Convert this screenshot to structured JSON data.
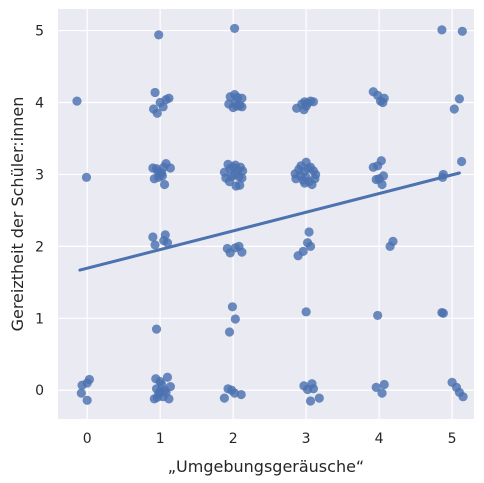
{
  "chart_data": {
    "type": "scatter",
    "title": "",
    "xlabel": "„Umgebungsgeräusche“",
    "ylabel": "Gereiztheit der Schüler:innen",
    "xlim": [
      -0.4,
      5.3
    ],
    "ylim": [
      -0.4,
      5.3
    ],
    "xticks": [
      "0",
      "1",
      "2",
      "3",
      "4",
      "5"
    ],
    "yticks": [
      "0",
      "1",
      "2",
      "3",
      "4",
      "5"
    ],
    "grid": true,
    "colors": {
      "background": "#EAEAF2",
      "grid": "#FFFFFF",
      "points": "#4C72B0",
      "line": "#4C72B0"
    },
    "points": [
      {
        "x": -0.14,
        "y": 4.02
      },
      {
        "x": -0.01,
        "y": 2.96
      },
      {
        "x": -0.07,
        "y": 0.07
      },
      {
        "x": 0.03,
        "y": 0.15
      },
      {
        "x": 0.0,
        "y": 0.1
      },
      {
        "x": -0.08,
        "y": -0.04
      },
      {
        "x": 0.0,
        "y": -0.14
      },
      {
        "x": 0.98,
        "y": 4.94
      },
      {
        "x": 0.93,
        "y": 4.14
      },
      {
        "x": 1.0,
        "y": 4.0
      },
      {
        "x": 1.08,
        "y": 4.04
      },
      {
        "x": 1.12,
        "y": 4.06
      },
      {
        "x": 0.91,
        "y": 3.91
      },
      {
        "x": 0.96,
        "y": 3.85
      },
      {
        "x": 1.04,
        "y": 3.94
      },
      {
        "x": 0.9,
        "y": 3.09
      },
      {
        "x": 0.95,
        "y": 3.08
      },
      {
        "x": 1.02,
        "y": 3.02
      },
      {
        "x": 1.05,
        "y": 3.1
      },
      {
        "x": 1.08,
        "y": 3.15
      },
      {
        "x": 1.14,
        "y": 3.09
      },
      {
        "x": 0.92,
        "y": 2.94
      },
      {
        "x": 0.98,
        "y": 2.96
      },
      {
        "x": 1.0,
        "y": 3.0
      },
      {
        "x": 1.06,
        "y": 2.86
      },
      {
        "x": 0.97,
        "y": 3.04
      },
      {
        "x": 1.03,
        "y": 2.98
      },
      {
        "x": 0.9,
        "y": 2.13
      },
      {
        "x": 0.93,
        "y": 2.02
      },
      {
        "x": 1.07,
        "y": 2.16
      },
      {
        "x": 1.05,
        "y": 2.08
      },
      {
        "x": 1.1,
        "y": 2.05
      },
      {
        "x": 0.95,
        "y": 0.85
      },
      {
        "x": 0.94,
        "y": 0.16
      },
      {
        "x": 1.0,
        "y": 0.12
      },
      {
        "x": 1.1,
        "y": 0.18
      },
      {
        "x": 1.14,
        "y": 0.05
      },
      {
        "x": 0.95,
        "y": 0.02
      },
      {
        "x": 1.02,
        "y": 0.08
      },
      {
        "x": 1.06,
        "y": 0.0
      },
      {
        "x": 0.92,
        "y": -0.12
      },
      {
        "x": 0.98,
        "y": -0.05
      },
      {
        "x": 1.04,
        "y": -0.09
      },
      {
        "x": 1.12,
        "y": -0.12
      },
      {
        "x": 1.0,
        "y": -0.02
      },
      {
        "x": 1.08,
        "y": -0.03
      },
      {
        "x": 0.96,
        "y": -0.1
      },
      {
        "x": 2.02,
        "y": 5.03
      },
      {
        "x": 1.96,
        "y": 4.08
      },
      {
        "x": 2.02,
        "y": 4.11
      },
      {
        "x": 2.06,
        "y": 4.07
      },
      {
        "x": 2.12,
        "y": 4.06
      },
      {
        "x": 1.94,
        "y": 3.98
      },
      {
        "x": 2.0,
        "y": 3.93
      },
      {
        "x": 2.05,
        "y": 3.95
      },
      {
        "x": 2.09,
        "y": 3.96
      },
      {
        "x": 2.12,
        "y": 3.94
      },
      {
        "x": 2.03,
        "y": 4.0
      },
      {
        "x": 1.88,
        "y": 3.03
      },
      {
        "x": 1.93,
        "y": 3.14
      },
      {
        "x": 1.96,
        "y": 3.08
      },
      {
        "x": 2.0,
        "y": 3.1
      },
      {
        "x": 2.03,
        "y": 3.13
      },
      {
        "x": 2.06,
        "y": 3.06
      },
      {
        "x": 2.1,
        "y": 3.1
      },
      {
        "x": 2.13,
        "y": 3.05
      },
      {
        "x": 1.9,
        "y": 2.95
      },
      {
        "x": 1.98,
        "y": 2.97
      },
      {
        "x": 2.02,
        "y": 3.0
      },
      {
        "x": 2.08,
        "y": 2.97
      },
      {
        "x": 2.12,
        "y": 2.95
      },
      {
        "x": 2.04,
        "y": 2.84
      },
      {
        "x": 2.09,
        "y": 2.85
      },
      {
        "x": 1.95,
        "y": 2.9
      },
      {
        "x": 1.92,
        "y": 1.97
      },
      {
        "x": 1.96,
        "y": 1.91
      },
      {
        "x": 2.03,
        "y": 1.98
      },
      {
        "x": 2.08,
        "y": 2.0
      },
      {
        "x": 2.12,
        "y": 1.92
      },
      {
        "x": 1.99,
        "y": 1.16
      },
      {
        "x": 2.03,
        "y": 0.99
      },
      {
        "x": 1.95,
        "y": 0.81
      },
      {
        "x": 1.93,
        "y": 0.02
      },
      {
        "x": 1.98,
        "y": 0.0
      },
      {
        "x": 2.02,
        "y": -0.04
      },
      {
        "x": 2.11,
        "y": -0.06
      },
      {
        "x": 1.88,
        "y": -0.11
      },
      {
        "x": 2.87,
        "y": 3.92
      },
      {
        "x": 2.94,
        "y": 3.98
      },
      {
        "x": 2.98,
        "y": 4.01
      },
      {
        "x": 3.02,
        "y": 3.99
      },
      {
        "x": 3.06,
        "y": 4.02
      },
      {
        "x": 3.1,
        "y": 4.01
      },
      {
        "x": 2.97,
        "y": 3.9
      },
      {
        "x": 3.0,
        "y": 3.95
      },
      {
        "x": 2.85,
        "y": 3.01
      },
      {
        "x": 2.9,
        "y": 3.07
      },
      {
        "x": 2.93,
        "y": 3.12
      },
      {
        "x": 2.97,
        "y": 3.04
      },
      {
        "x": 3.0,
        "y": 3.17
      },
      {
        "x": 3.03,
        "y": 3.08
      },
      {
        "x": 3.06,
        "y": 3.1
      },
      {
        "x": 3.1,
        "y": 3.05
      },
      {
        "x": 3.13,
        "y": 3.0
      },
      {
        "x": 2.86,
        "y": 2.94
      },
      {
        "x": 2.92,
        "y": 2.98
      },
      {
        "x": 2.96,
        "y": 2.92
      },
      {
        "x": 3.0,
        "y": 2.96
      },
      {
        "x": 3.04,
        "y": 2.9
      },
      {
        "x": 3.08,
        "y": 2.86
      },
      {
        "x": 3.12,
        "y": 2.94
      },
      {
        "x": 2.98,
        "y": 2.88
      },
      {
        "x": 3.04,
        "y": 2.2
      },
      {
        "x": 3.02,
        "y": 2.05
      },
      {
        "x": 3.06,
        "y": 2.0
      },
      {
        "x": 2.96,
        "y": 1.93
      },
      {
        "x": 2.89,
        "y": 1.87
      },
      {
        "x": 3.0,
        "y": 1.09
      },
      {
        "x": 2.97,
        "y": 0.06
      },
      {
        "x": 3.02,
        "y": 0.01
      },
      {
        "x": 3.08,
        "y": 0.09
      },
      {
        "x": 3.1,
        "y": 0.02
      },
      {
        "x": 3.18,
        "y": -0.11
      },
      {
        "x": 3.06,
        "y": -0.15
      },
      {
        "x": 3.92,
        "y": 4.15
      },
      {
        "x": 3.98,
        "y": 4.1
      },
      {
        "x": 4.02,
        "y": 4.02
      },
      {
        "x": 4.05,
        "y": 4.0
      },
      {
        "x": 4.07,
        "y": 4.06
      },
      {
        "x": 3.92,
        "y": 3.1
      },
      {
        "x": 3.98,
        "y": 3.12
      },
      {
        "x": 4.03,
        "y": 3.19
      },
      {
        "x": 3.96,
        "y": 2.93
      },
      {
        "x": 4.0,
        "y": 2.94
      },
      {
        "x": 4.06,
        "y": 2.98
      },
      {
        "x": 4.04,
        "y": 2.86
      },
      {
        "x": 4.19,
        "y": 2.07
      },
      {
        "x": 4.15,
        "y": 2.0
      },
      {
        "x": 3.98,
        "y": 1.04
      },
      {
        "x": 3.96,
        "y": 0.04
      },
      {
        "x": 4.07,
        "y": 0.08
      },
      {
        "x": 4.04,
        "y": -0.04
      },
      {
        "x": 4.86,
        "y": 5.01
      },
      {
        "x": 5.14,
        "y": 4.99
      },
      {
        "x": 5.1,
        "y": 4.05
      },
      {
        "x": 5.03,
        "y": 3.91
      },
      {
        "x": 5.13,
        "y": 3.18
      },
      {
        "x": 4.88,
        "y": 3.0
      },
      {
        "x": 4.87,
        "y": 2.96
      },
      {
        "x": 4.86,
        "y": 1.08
      },
      {
        "x": 4.88,
        "y": 1.07
      },
      {
        "x": 5.0,
        "y": 0.11
      },
      {
        "x": 5.06,
        "y": 0.04
      },
      {
        "x": 5.1,
        "y": -0.03
      },
      {
        "x": 5.15,
        "y": -0.09
      }
    ],
    "regression": {
      "x": [
        -0.1,
        5.1
      ],
      "y": [
        1.67,
        3.02
      ]
    }
  }
}
